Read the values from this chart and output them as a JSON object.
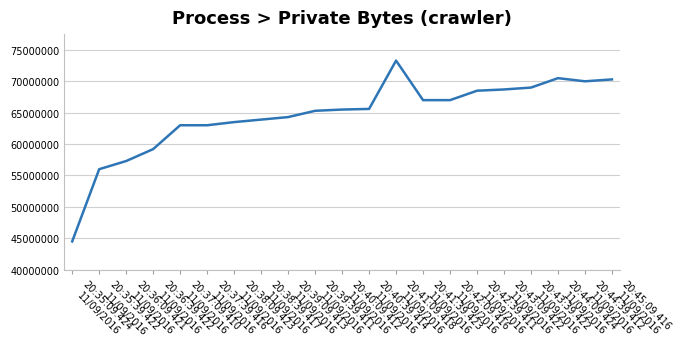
{
  "title": "Process > Private Bytes (crawler)",
  "x_labels": [
    "20:35:09.424\n11/09/2016",
    "20:35:39.422\n11/09/2016",
    "20:36:09.421\n11/09/2016",
    "20:36:39.422\n11/09/2016",
    "20:37:09.410\n11/09/2016",
    "20:37:39.416\n11/09/2016",
    "20:38:09.423\n11/09/2016",
    "20:38:39.417\n11/09/2016",
    "20:39:09.413\n11/09/2016",
    "20:39:39.411\n11/09/2016",
    "20:40:09.412\n11/09/2016",
    "20:40:39.414\n11/09/2016",
    "20:41:09.418\n11/09/2016",
    "20:41:39.423\n11/09/2016",
    "20:42:09.416\n11/09/2016",
    "20:42:39.411\n11/09/2016",
    "20:43:09.422\n11/09/2016",
    "20:43:39.422\n11/09/2016",
    "20:44:09.424\n11/09/2016",
    "20:44:39.412\n11/09/2016",
    "20:45:09.416\n11/09/2016"
  ],
  "y_data": [
    44500000,
    56000000,
    57300000,
    59200000,
    63000000,
    63000000,
    63500000,
    63900000,
    64300000,
    65300000,
    65500000,
    65600000,
    73300000,
    67000000,
    67000000,
    68500000,
    68700000,
    69000000,
    70500000,
    70000000,
    70300000
  ],
  "line_color": "#2e75b6",
  "background_color": "#ffffff",
  "ylim_min": 40000000,
  "ylim_max": 77500000,
  "yticks": [
    40000000,
    45000000,
    50000000,
    55000000,
    60000000,
    65000000,
    70000000,
    75000000
  ],
  "title_fontsize": 13,
  "tick_fontsize": 7,
  "grid_color": "#d0d0d0",
  "line_width": 1.8
}
